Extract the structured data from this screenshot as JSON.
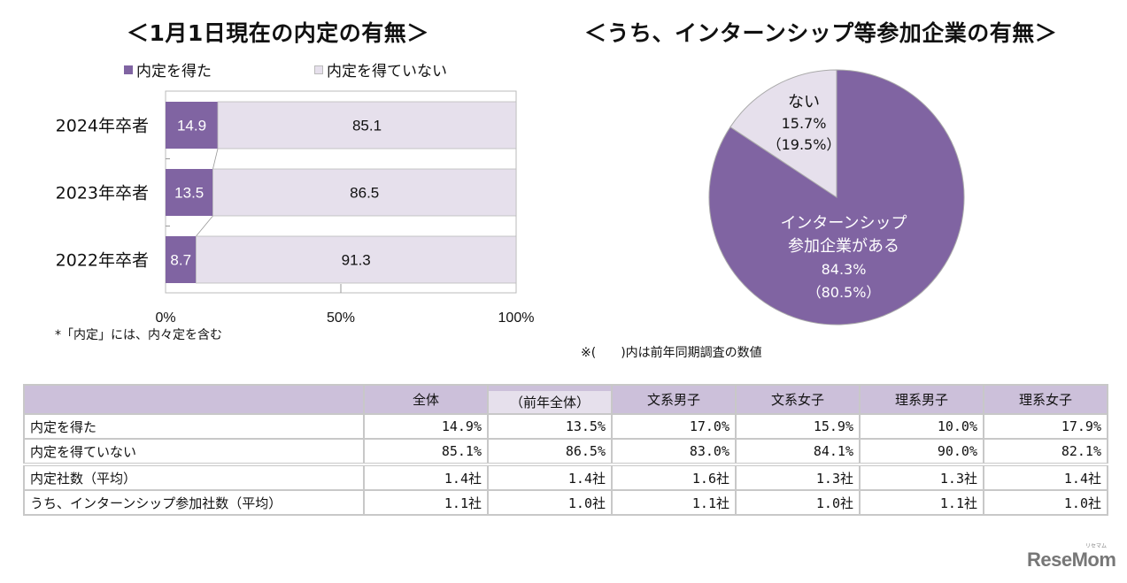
{
  "left_chart": {
    "title": "＜1月1日現在の内定の有無＞",
    "note": "*「内定」には、内々定を含む"
  },
  "right_chart": {
    "title": "＜うち、インターンシップ等参加企業の有無＞",
    "note": "※(　　)内は前年同期調査の数値",
    "slice_labels": {
      "no_line1": "ない",
      "no_line2": "15.7%",
      "no_line3": "（19.5%）",
      "yes_line1": "インターンシップ",
      "yes_line2": "参加企業がある",
      "yes_line3": "84.3%",
      "yes_line4": "（80.5%）"
    }
  },
  "colors": {
    "purple": "#8064a2",
    "light_purple": "#e6e0ec",
    "header_purple": "#ccc0da"
  },
  "chart_data": [
    {
      "type": "bar",
      "orientation": "horizontal-stacked-100",
      "title": "＜1月1日現在の内定の有無＞",
      "categories": [
        "2024年卒者",
        "2023年卒者",
        "2022年卒者"
      ],
      "series": [
        {
          "name": "内定を得た",
          "values": [
            14.9,
            13.5,
            8.7
          ]
        },
        {
          "name": "内定を得ていない",
          "values": [
            85.1,
            86.5,
            91.3
          ]
        }
      ],
      "xlim": [
        0,
        100
      ],
      "xticks": [
        "0%",
        "50%",
        "100%"
      ],
      "legend": "top",
      "xlabel": "",
      "ylabel": ""
    },
    {
      "type": "pie",
      "title": "＜うち、インターンシップ等参加企業の有無＞",
      "slices": [
        {
          "name": "インターンシップ参加企業がある",
          "value": 84.3,
          "previous": 80.5
        },
        {
          "name": "ない",
          "value": 15.7,
          "previous": 19.5
        }
      ]
    },
    {
      "type": "table",
      "columns": [
        "",
        "全体",
        "（前年全体）",
        "文系男子",
        "文系女子",
        "理系男子",
        "理系女子"
      ],
      "rows": [
        {
          "label": "内定を得た",
          "values": [
            "14.9%",
            "13.5%",
            "17.0%",
            "15.9%",
            "10.0%",
            "17.9%"
          ]
        },
        {
          "label": "内定を得ていない",
          "values": [
            "85.1%",
            "86.5%",
            "83.0%",
            "84.1%",
            "90.0%",
            "82.1%"
          ]
        },
        {
          "label": "内定社数（平均）",
          "values": [
            "1.4社",
            "1.4社",
            "1.6社",
            "1.3社",
            "1.3社",
            "1.4社"
          ]
        },
        {
          "label": "うち、インターンシップ参加社数（平均）",
          "values": [
            "1.1社",
            "1.0社",
            "1.1社",
            "1.0社",
            "1.1社",
            "1.0社"
          ]
        }
      ]
    }
  ],
  "logo": {
    "text": "ReseMom",
    "ruby": "リセマム"
  }
}
